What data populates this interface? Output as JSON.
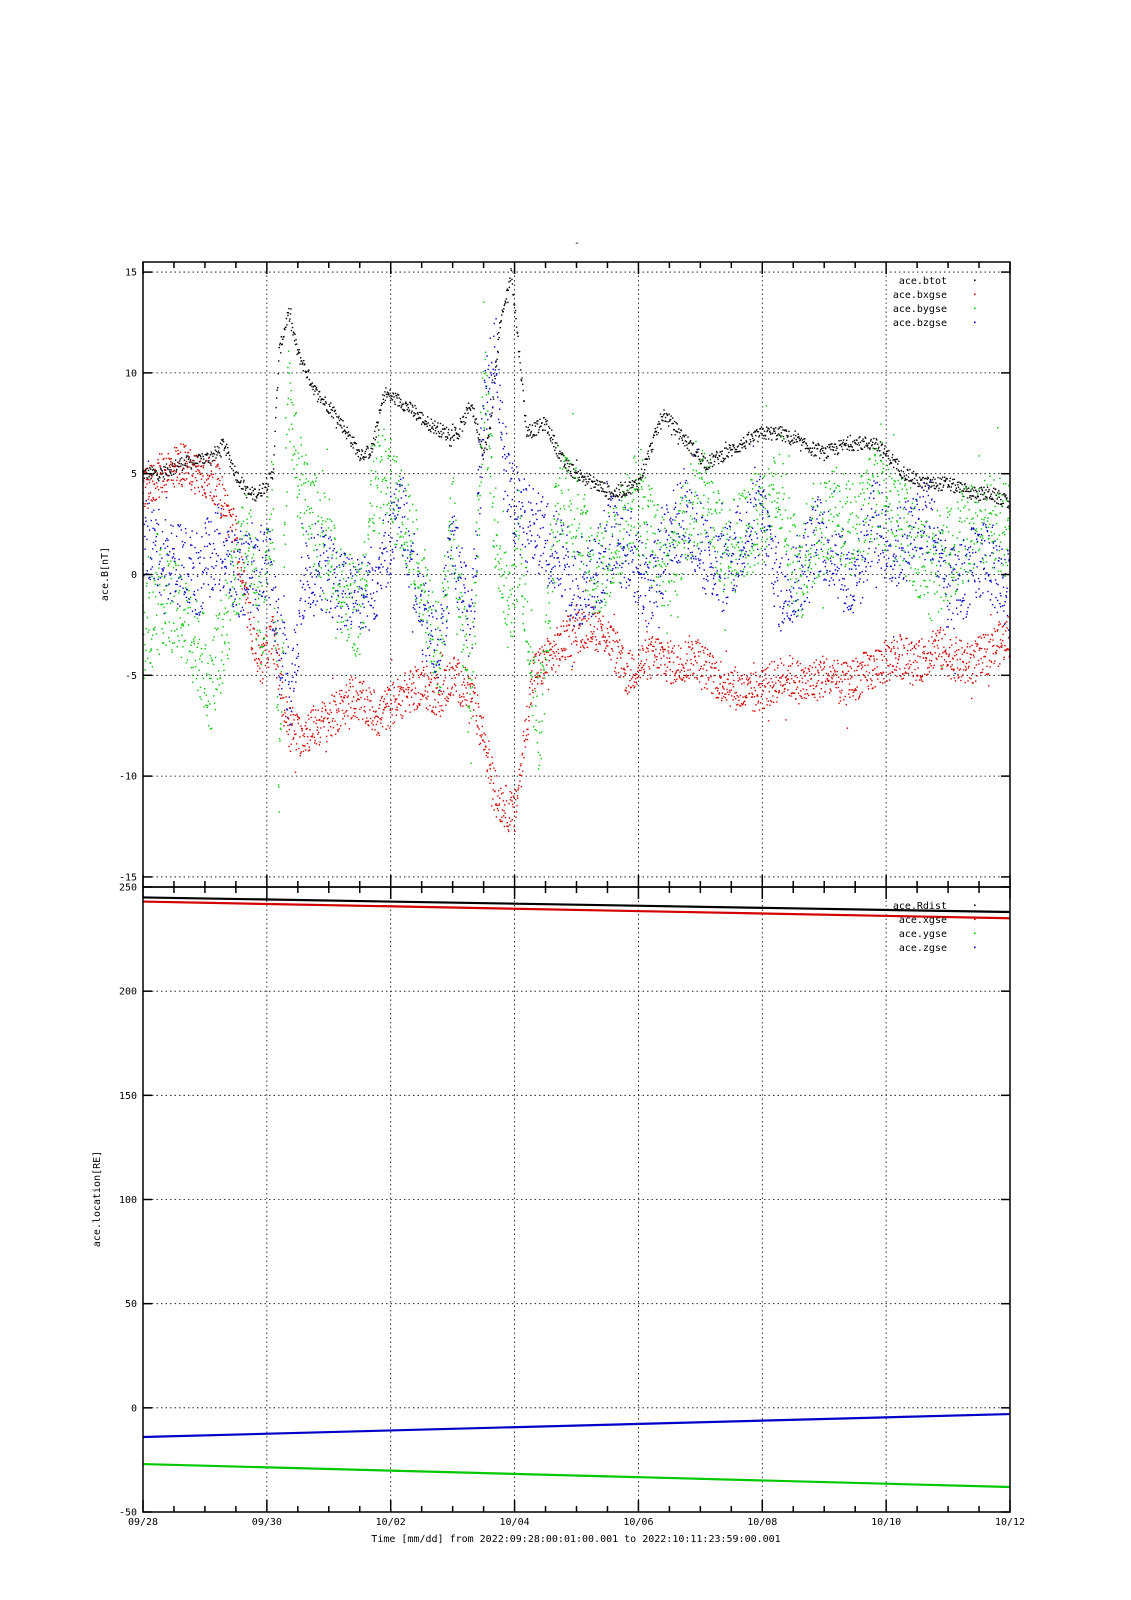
{
  "figure_title": "-",
  "x_axis_label": "Time [mm/dd]  from 2022:09:28:00:01:00.001  to  2022:10:11:23:59:00.001",
  "x_tick_labels": [
    "09/28",
    "09/30",
    "10/02",
    "10/04",
    "10/06",
    "10/08",
    "10/10",
    "10/12"
  ],
  "colors": {
    "black": "#000000",
    "red": "#d40000",
    "green": "#00c800",
    "blue": "#0000c8"
  },
  "chart_data": [
    {
      "type": "scatter",
      "title": "",
      "xlabel": "Time [mm/dd]",
      "ylabel": "ace.B[nT]",
      "x_unit": "days since 09/28",
      "xlim": [
        0,
        14
      ],
      "ylim": [
        -15.5,
        15.5
      ],
      "y_ticks": [
        -15,
        -10,
        -5,
        0,
        5,
        10,
        15
      ],
      "grid": true,
      "legend_position": "top-right",
      "series": [
        {
          "name": "ace.btot",
          "color": "#000000",
          "x": [
            0,
            0.3,
            0.6,
            0.9,
            1.2,
            1.3,
            1.5,
            1.7,
            1.85,
            2.0,
            2.1,
            2.2,
            2.35,
            2.5,
            2.8,
            3.1,
            3.4,
            3.5,
            3.6,
            3.7,
            3.9,
            4.2,
            4.4,
            4.6,
            4.9,
            5.1,
            5.3,
            5.5,
            5.6,
            5.75,
            5.95,
            6.2,
            6.5,
            6.8,
            7.0,
            7.3,
            7.6,
            8.0,
            8.4,
            8.8,
            9.1,
            9.4,
            9.7,
            10.0,
            10.3,
            10.6,
            11.0,
            11.4,
            11.8,
            12.0,
            12.3,
            12.6,
            13.0,
            13.4,
            13.7,
            14.0
          ],
          "y": [
            5.0,
            5.0,
            5.5,
            5.6,
            6.0,
            6.5,
            5.0,
            4.0,
            4.0,
            4.5,
            5.0,
            11.0,
            13.0,
            11.0,
            9.0,
            8.0,
            6.5,
            6.0,
            6.0,
            6.2,
            9.0,
            8.5,
            8.0,
            7.5,
            7.0,
            7.0,
            8.5,
            6.0,
            7.0,
            12.0,
            15.0,
            7.0,
            7.5,
            5.5,
            5.0,
            4.5,
            4.0,
            4.5,
            8.0,
            6.5,
            5.5,
            6.0,
            6.5,
            7.0,
            7.0,
            6.5,
            6.0,
            6.5,
            6.5,
            6.0,
            5.0,
            4.5,
            4.5,
            4.0,
            4.0,
            3.5
          ]
        },
        {
          "name": "ace.bxgse",
          "color": "#d40000",
          "x": [
            0,
            0.3,
            0.6,
            0.9,
            1.2,
            1.5,
            1.7,
            1.9,
            2.1,
            2.3,
            2.5,
            2.8,
            3.1,
            3.4,
            3.6,
            3.8,
            4.0,
            4.2,
            4.5,
            4.8,
            5.0,
            5.3,
            5.5,
            5.7,
            6.0,
            6.3,
            6.6,
            6.9,
            7.2,
            7.5,
            7.8,
            8.0,
            8.3,
            8.6,
            8.9,
            9.2,
            9.5,
            9.8,
            10.1,
            10.4,
            10.7,
            11.0,
            11.3,
            11.6,
            11.9,
            12.2,
            12.5,
            12.8,
            13.0,
            13.3,
            13.6,
            14.0
          ],
          "y": [
            4.0,
            5.0,
            5.5,
            5.0,
            4.5,
            2.0,
            -2.0,
            -4.5,
            -3.0,
            -7.0,
            -8.0,
            -7.5,
            -7.0,
            -6.0,
            -6.5,
            -7.0,
            -6.5,
            -6.0,
            -5.5,
            -6.0,
            -5.0,
            -6.0,
            -8.0,
            -11.0,
            -12.0,
            -5.0,
            -4.0,
            -3.0,
            -2.5,
            -3.0,
            -5.0,
            -4.5,
            -4.0,
            -4.5,
            -4.0,
            -5.0,
            -5.5,
            -6.0,
            -5.5,
            -5.0,
            -5.5,
            -5.0,
            -5.5,
            -5.0,
            -4.5,
            -4.0,
            -4.5,
            -3.5,
            -4.0,
            -4.5,
            -4.0,
            -3.0
          ]
        },
        {
          "name": "ace.bygse",
          "color": "#00c800",
          "x": [
            0,
            0.3,
            0.6,
            0.9,
            1.1,
            1.3,
            1.5,
            1.7,
            1.9,
            2.1,
            2.2,
            2.35,
            2.5,
            2.7,
            2.9,
            3.1,
            3.3,
            3.5,
            3.7,
            3.9,
            4.2,
            4.5,
            4.8,
            5.0,
            5.3,
            5.5,
            5.7,
            5.9,
            6.1,
            6.4,
            6.7,
            7.0,
            7.3,
            7.6,
            7.9,
            8.2,
            8.5,
            8.8,
            9.1,
            9.4,
            9.7,
            10.0,
            10.3,
            10.6,
            10.9,
            11.2,
            11.5,
            11.8,
            12.1,
            12.4,
            12.7,
            13.0,
            13.3,
            13.6,
            14.0
          ],
          "y": [
            -3.0,
            -1.0,
            -2.0,
            -3.5,
            -5.5,
            -3.0,
            0.0,
            2.0,
            -3.0,
            4.0,
            -10.0,
            9.0,
            5.0,
            3.0,
            2.0,
            0.0,
            -1.0,
            -2.0,
            4.0,
            5.0,
            3.0,
            0.0,
            -4.0,
            3.0,
            -7.0,
            10.0,
            2.0,
            -2.0,
            1.0,
            -8.0,
            4.0,
            3.0,
            0.0,
            1.0,
            4.0,
            2.0,
            0.0,
            3.0,
            4.0,
            1.0,
            2.0,
            3.0,
            4.0,
            0.0,
            2.0,
            3.0,
            2.0,
            4.0,
            3.0,
            2.0,
            0.0,
            1.0,
            2.0,
            3.0,
            2.0
          ]
        },
        {
          "name": "ace.bzgse",
          "color": "#0000c8",
          "x": [
            0,
            0.3,
            0.6,
            0.9,
            1.2,
            1.5,
            1.8,
            2.0,
            2.2,
            2.4,
            2.6,
            2.8,
            3.0,
            3.2,
            3.4,
            3.6,
            3.8,
            4.0,
            4.2,
            4.5,
            4.8,
            5.0,
            5.3,
            5.5,
            5.7,
            5.9,
            6.1,
            6.4,
            6.7,
            7.0,
            7.3,
            7.6,
            7.9,
            8.2,
            8.5,
            8.8,
            9.1,
            9.4,
            9.7,
            10.0,
            10.3,
            10.6,
            10.9,
            11.2,
            11.5,
            11.8,
            12.1,
            12.4,
            12.7,
            13.0,
            13.3,
            13.6,
            14.0
          ],
          "y": [
            2.0,
            1.0,
            0.5,
            0.0,
            1.5,
            0.0,
            0.0,
            1.0,
            -3.0,
            -6.0,
            0.0,
            0.5,
            0.0,
            -1.0,
            -0.5,
            -1.0,
            0.0,
            2.0,
            3.0,
            -2.0,
            -4.0,
            2.0,
            -3.0,
            8.0,
            11.0,
            4.0,
            3.0,
            2.0,
            1.0,
            -1.0,
            0.0,
            2.0,
            1.0,
            -1.0,
            2.0,
            3.0,
            1.0,
            0.0,
            2.0,
            3.0,
            -1.0,
            0.0,
            2.0,
            1.0,
            -1.0,
            3.0,
            1.0,
            2.0,
            3.0,
            -1.0,
            0.0,
            1.0,
            -1.0
          ]
        }
      ]
    },
    {
      "type": "line",
      "title": "",
      "xlabel": "Time [mm/dd]",
      "ylabel": "ace.location[RE]",
      "x_unit": "days since 09/28",
      "xlim": [
        0,
        14
      ],
      "ylim": [
        -50,
        250
      ],
      "y_ticks": [
        -50,
        0,
        50,
        100,
        150,
        200,
        250
      ],
      "grid": true,
      "legend_position": "top-right",
      "series": [
        {
          "name": "ace.Rdist",
          "color": "#000000",
          "x": [
            0,
            14
          ],
          "y": [
            245,
            238
          ]
        },
        {
          "name": "ace.xgse",
          "color": "#d40000",
          "x": [
            0,
            14
          ],
          "y": [
            243,
            235
          ]
        },
        {
          "name": "ace.ygse",
          "color": "#00c800",
          "x": [
            0,
            14
          ],
          "y": [
            -27,
            -38
          ]
        },
        {
          "name": "ace.zgse",
          "color": "#0000c8",
          "x": [
            0,
            14
          ],
          "y": [
            -14,
            -3
          ]
        }
      ]
    }
  ]
}
